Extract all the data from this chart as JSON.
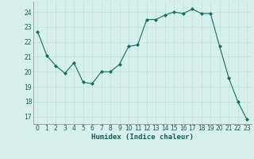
{
  "x": [
    0,
    1,
    2,
    3,
    4,
    5,
    6,
    7,
    8,
    9,
    10,
    11,
    12,
    13,
    14,
    15,
    16,
    17,
    18,
    19,
    20,
    21,
    22,
    23
  ],
  "y": [
    22.7,
    21.1,
    20.4,
    19.9,
    20.6,
    19.3,
    19.2,
    20.0,
    20.0,
    20.5,
    21.7,
    21.8,
    23.5,
    23.5,
    23.8,
    24.0,
    23.9,
    24.2,
    23.9,
    23.9,
    21.7,
    19.6,
    18.0,
    16.8
  ],
  "line_color": "#1a6b5a",
  "marker_color": "#1a6b5a",
  "bg_color": "#d6f0ec",
  "grid_color": "#c2e0da",
  "xlabel": "Humidex (Indice chaleur)",
  "ylim": [
    16.5,
    24.7
  ],
  "yticks": [
    17,
    18,
    19,
    20,
    21,
    22,
    23,
    24
  ],
  "xticks": [
    0,
    1,
    2,
    3,
    4,
    5,
    6,
    7,
    8,
    9,
    10,
    11,
    12,
    13,
    14,
    15,
    16,
    17,
    18,
    19,
    20,
    21,
    22,
    23
  ],
  "xlabel_fontsize": 6.5,
  "tick_fontsize": 5.5
}
